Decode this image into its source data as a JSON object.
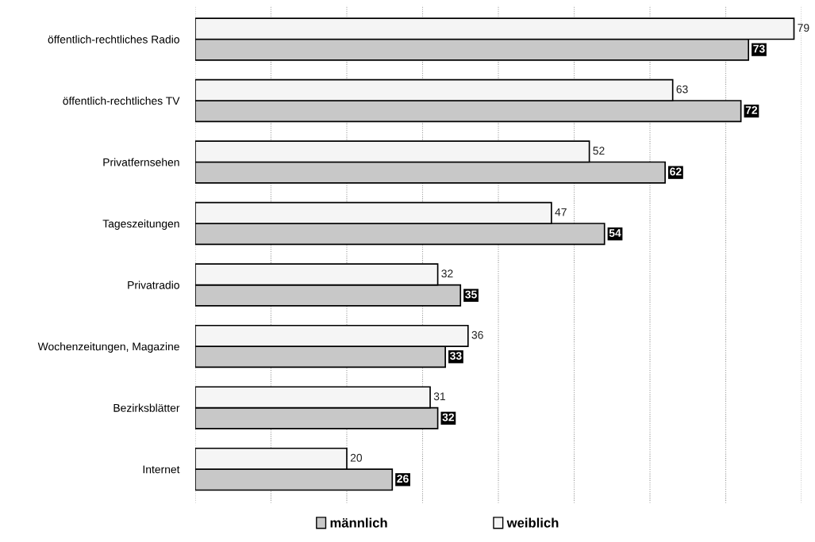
{
  "chart_data": {
    "type": "bar",
    "orientation": "horizontal",
    "categories": [
      "öffentlich-rechtliches Radio",
      "öffentlich-rechtliches TV",
      "Privatfernsehen",
      "Tageszeitungen",
      "Privatradio",
      "Wochenzeitungen, Magazine",
      "Bezirksblätter",
      "Internet"
    ],
    "series": [
      {
        "name": "männlich",
        "color": "#c8c8c8",
        "values": [
          73,
          72,
          62,
          54,
          35,
          33,
          32,
          26
        ]
      },
      {
        "name": "weiblich",
        "color": "#f5f5f5",
        "values": [
          79,
          63,
          52,
          47,
          32,
          36,
          31,
          20
        ]
      }
    ],
    "xlim": [
      0,
      80
    ],
    "xticks": [
      {
        "value": 0,
        "label": null
      },
      {
        "value": 10,
        "label": null
      },
      {
        "value": 20,
        "label": null
      },
      {
        "value": 30,
        "label": null
      },
      {
        "value": 40,
        "label": null
      },
      {
        "value": 50,
        "label": null
      },
      {
        "value": 60,
        "label": null
      },
      {
        "value": 70,
        "label": null
      },
      {
        "value": 80,
        "label": null
      }
    ],
    "tick_labels": "y",
    "grid": "x",
    "data_labels": true,
    "legend": "bottom"
  }
}
